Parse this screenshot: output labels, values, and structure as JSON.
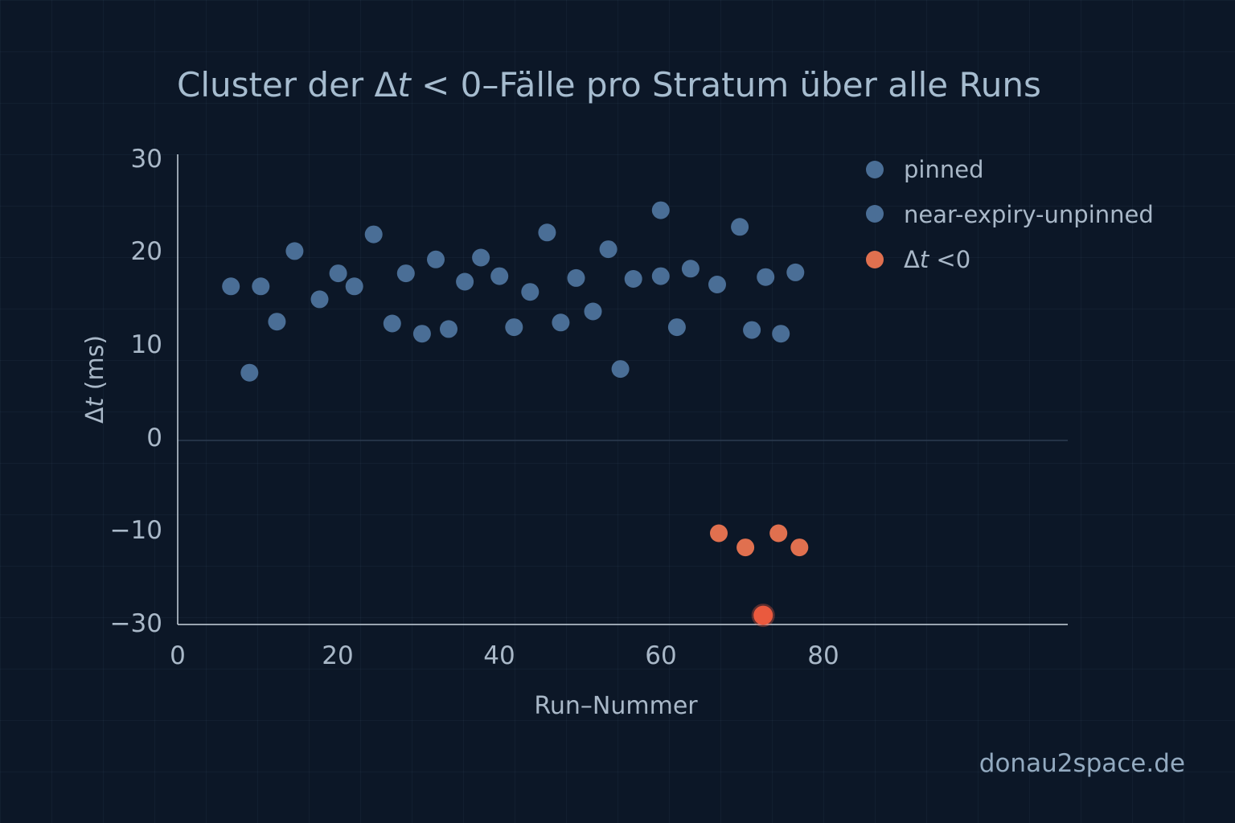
{
  "watermark": "donau2space.de",
  "colors": {
    "background": "#0c1727",
    "series_blue": "#4a6e96",
    "series_orange": "#e0704f",
    "axis": "#c8d3de",
    "text": "#a9b8c8"
  },
  "chart_data": {
    "type": "scatter",
    "title_parts": [
      "Cluster der ",
      "Δ",
      "t",
      " < 0–Fälle pro Stratum über alle Runs"
    ],
    "xlabel": "Run–Nummer",
    "ylabel_parts": [
      "Δ",
      "t",
      " (ms)"
    ],
    "xlim": [
      0,
      110
    ],
    "x_ticks": [
      0,
      20,
      40,
      60,
      80
    ],
    "x_tick_labels": [
      "0",
      "20",
      "40",
      "60",
      "80"
    ],
    "y_ticks": [
      30,
      20,
      10,
      0,
      -10,
      -30
    ],
    "y_tick_labels": [
      "30",
      "20",
      "10",
      "0",
      "−10",
      "−30"
    ],
    "y_axis_breakpoints": {
      "data": [
        -30,
        -10,
        0,
        30
      ],
      "note_visual_only": "axis is non-linear below -10"
    },
    "grid": false,
    "legend_position": "top-right",
    "series": [
      {
        "name": "pinned",
        "color": "#4a6e96",
        "points": [
          [
            6.6,
            16.6
          ],
          [
            8.9,
            7.3
          ],
          [
            10.3,
            16.6
          ],
          [
            12.3,
            12.8
          ],
          [
            14.5,
            20.4
          ],
          [
            17.6,
            15.2
          ],
          [
            19.9,
            18.0
          ],
          [
            21.9,
            16.6
          ],
          [
            24.3,
            22.2
          ],
          [
            26.6,
            12.6
          ],
          [
            28.3,
            18.0
          ],
          [
            30.3,
            11.5
          ],
          [
            32.0,
            19.5
          ],
          [
            33.6,
            12.0
          ],
          [
            35.6,
            17.1
          ],
          [
            37.6,
            19.7
          ],
          [
            39.9,
            17.7
          ],
          [
            41.7,
            12.2
          ],
          [
            43.7,
            16.0
          ],
          [
            45.8,
            22.4
          ],
          [
            47.5,
            12.7
          ],
          [
            49.4,
            17.5
          ],
          [
            51.5,
            13.9
          ],
          [
            53.4,
            20.6
          ],
          [
            54.9,
            7.7
          ],
          [
            56.5,
            17.4
          ],
          [
            59.9,
            24.8
          ],
          [
            59.9,
            17.7
          ],
          [
            61.9,
            12.2
          ],
          [
            63.6,
            18.5
          ],
          [
            66.9,
            16.8
          ],
          [
            69.7,
            23.0
          ],
          [
            71.2,
            11.9
          ],
          [
            72.9,
            17.6
          ],
          [
            74.8,
            11.5
          ],
          [
            76.6,
            18.1
          ]
        ]
      },
      {
        "name": "near-expiry-unpinned",
        "color": "#4a6e96",
        "points": []
      },
      {
        "name_parts": [
          "Δ",
          "t",
          " <0"
        ],
        "color": "#e0704f",
        "points": [
          [
            67.1,
            -10.0
          ],
          [
            70.4,
            -13.1
          ],
          [
            72.6,
            -28.0
          ],
          [
            74.5,
            -10.0
          ],
          [
            77.1,
            -13.1
          ]
        ]
      }
    ]
  }
}
